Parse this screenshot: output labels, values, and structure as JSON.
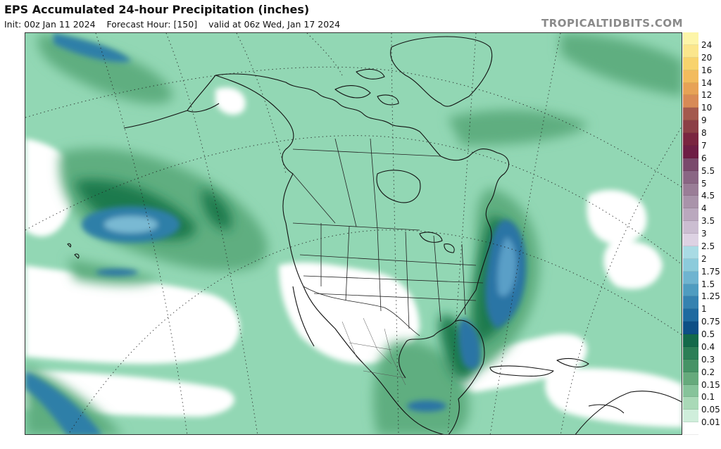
{
  "header": {
    "title": "EPS Accumulated 24-hour Precipitation (inches)",
    "init": "Init: 00z Jan 11 2024",
    "forecast_hour": "Forecast Hour: [150]",
    "valid": "valid at 06z Wed, Jan 17 2024",
    "brand": "TROPICALTIDBITS.COM"
  },
  "legend": [
    {
      "label": "24",
      "color": "#fdf5a8"
    },
    {
      "label": "20",
      "color": "#fbe68c"
    },
    {
      "label": "16",
      "color": "#f8d36d"
    },
    {
      "label": "14",
      "color": "#f2bb5d"
    },
    {
      "label": "12",
      "color": "#e7a256"
    },
    {
      "label": "10",
      "color": "#d88a56"
    },
    {
      "label": "9",
      "color": "#a4594d"
    },
    {
      "label": "8",
      "color": "#8c3f46"
    },
    {
      "label": "7",
      "color": "#7a2540"
    },
    {
      "label": "6",
      "color": "#6e1e45"
    },
    {
      "label": "5.5",
      "color": "#7a4a6c"
    },
    {
      "label": "5",
      "color": "#8a6684"
    },
    {
      "label": "4.5",
      "color": "#9a7d97"
    },
    {
      "label": "4",
      "color": "#a993aa"
    },
    {
      "label": "3.5",
      "color": "#baa8be"
    },
    {
      "label": "3",
      "color": "#cbbdd1"
    },
    {
      "label": "2.5",
      "color": "#ddd2e3"
    },
    {
      "label": "2",
      "color": "#a9dbe4"
    },
    {
      "label": "1.75",
      "color": "#8ccbdb"
    },
    {
      "label": "1.5",
      "color": "#6fb4d0"
    },
    {
      "label": "1.25",
      "color": "#4f9cc0"
    },
    {
      "label": "1",
      "color": "#3582b0"
    },
    {
      "label": "0.75",
      "color": "#1f6aa0"
    },
    {
      "label": "0.5",
      "color": "#0d4f86"
    },
    {
      "label": "0.4",
      "color": "#13694a"
    },
    {
      "label": "0.3",
      "color": "#2b7e56"
    },
    {
      "label": "0.2",
      "color": "#469366"
    },
    {
      "label": "0.15",
      "color": "#66aa7c"
    },
    {
      "label": "0.1",
      "color": "#86c39a"
    },
    {
      "label": "0.05",
      "color": "#a9d9b7"
    },
    {
      "label": "0.01",
      "color": "#cfeedb"
    },
    {
      "label": "",
      "color": "#ffffff"
    }
  ]
}
